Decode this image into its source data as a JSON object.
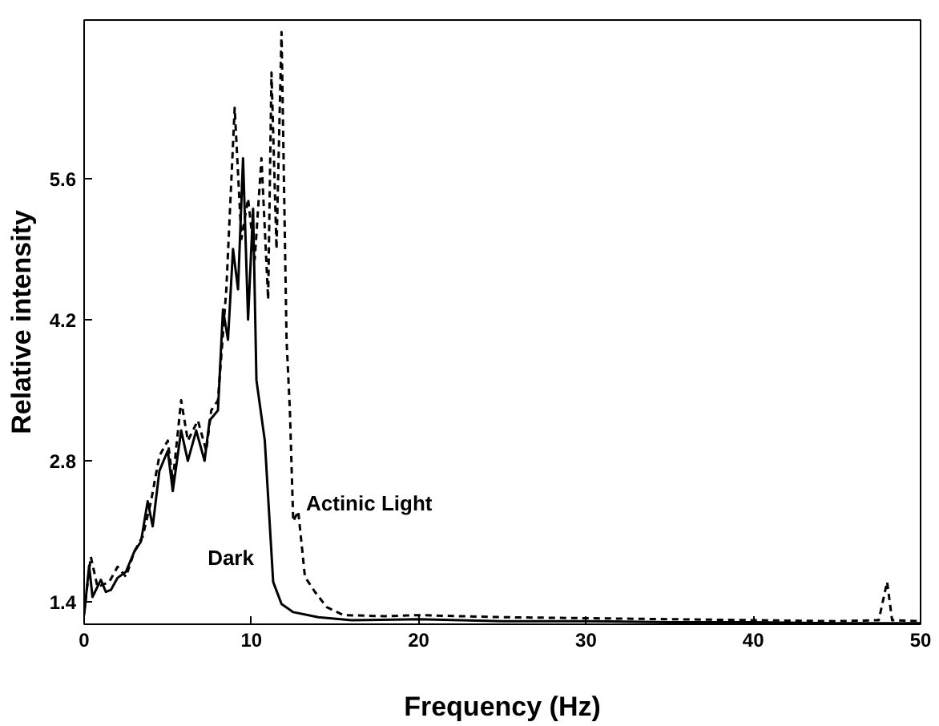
{
  "chart_data": {
    "type": "line",
    "xlabel": "Frequency (Hz)",
    "ylabel": "Relative intensity",
    "xlim": [
      0,
      50
    ],
    "ylim": [
      1.18,
      7.17
    ],
    "xticks": [
      0,
      10,
      20,
      30,
      40,
      50
    ],
    "yticks": [
      1.4,
      2.8,
      4.2,
      5.6
    ],
    "grid": false,
    "marker": "none",
    "series": [
      {
        "name": "Dark",
        "color": "#000000",
        "line_style": "solid",
        "x": [
          0,
          0.3,
          0.5,
          1.0,
          1.3,
          1.6,
          2.0,
          2.5,
          3.0,
          3.4,
          3.8,
          4.1,
          4.5,
          5.0,
          5.3,
          5.8,
          6.2,
          6.7,
          7.2,
          7.5,
          8.0,
          8.3,
          8.6,
          8.9,
          9.2,
          9.5,
          9.8,
          10.1,
          10.3,
          10.8,
          11.3,
          11.8,
          12.5,
          14,
          16,
          20,
          25,
          30,
          35,
          40,
          45,
          48,
          50
        ],
        "values": [
          1.27,
          1.76,
          1.45,
          1.62,
          1.5,
          1.52,
          1.64,
          1.7,
          1.9,
          2.0,
          2.4,
          2.15,
          2.7,
          2.9,
          2.5,
          3.1,
          2.8,
          3.1,
          2.8,
          3.2,
          3.3,
          4.3,
          4.0,
          4.9,
          4.5,
          5.8,
          4.2,
          5.3,
          3.6,
          3.0,
          1.6,
          1.38,
          1.3,
          1.25,
          1.22,
          1.23,
          1.21,
          1.21,
          1.2,
          1.2,
          1.19,
          1.19,
          1.19
        ]
      },
      {
        "name": "Actinic Light",
        "color": "#000000",
        "line_style": "dashed",
        "x": [
          0,
          0.4,
          0.8,
          1.5,
          2.0,
          2.5,
          3.0,
          3.5,
          4.0,
          4.5,
          5.0,
          5.3,
          5.8,
          6.2,
          6.8,
          7.3,
          7.6,
          8.0,
          8.5,
          9.0,
          9.4,
          9.8,
          10.2,
          10.6,
          11.0,
          11.2,
          11.5,
          11.8,
          12.1,
          12.3,
          12.5,
          12.8,
          13.2,
          13.8,
          14.5,
          15.5,
          18,
          20,
          25,
          30,
          35,
          40,
          45,
          47.5,
          48.0,
          48.3,
          50
        ],
        "values": [
          1.3,
          1.85,
          1.55,
          1.6,
          1.75,
          1.65,
          1.9,
          2.05,
          2.4,
          2.85,
          3.0,
          2.6,
          3.4,
          3.0,
          3.2,
          2.9,
          3.3,
          3.4,
          4.5,
          6.3,
          5.0,
          5.4,
          4.8,
          5.8,
          4.4,
          6.65,
          4.9,
          7.05,
          4.0,
          3.3,
          2.2,
          2.3,
          1.65,
          1.5,
          1.35,
          1.27,
          1.26,
          1.27,
          1.25,
          1.24,
          1.23,
          1.22,
          1.21,
          1.22,
          1.6,
          1.22,
          1.21
        ]
      }
    ]
  }
}
